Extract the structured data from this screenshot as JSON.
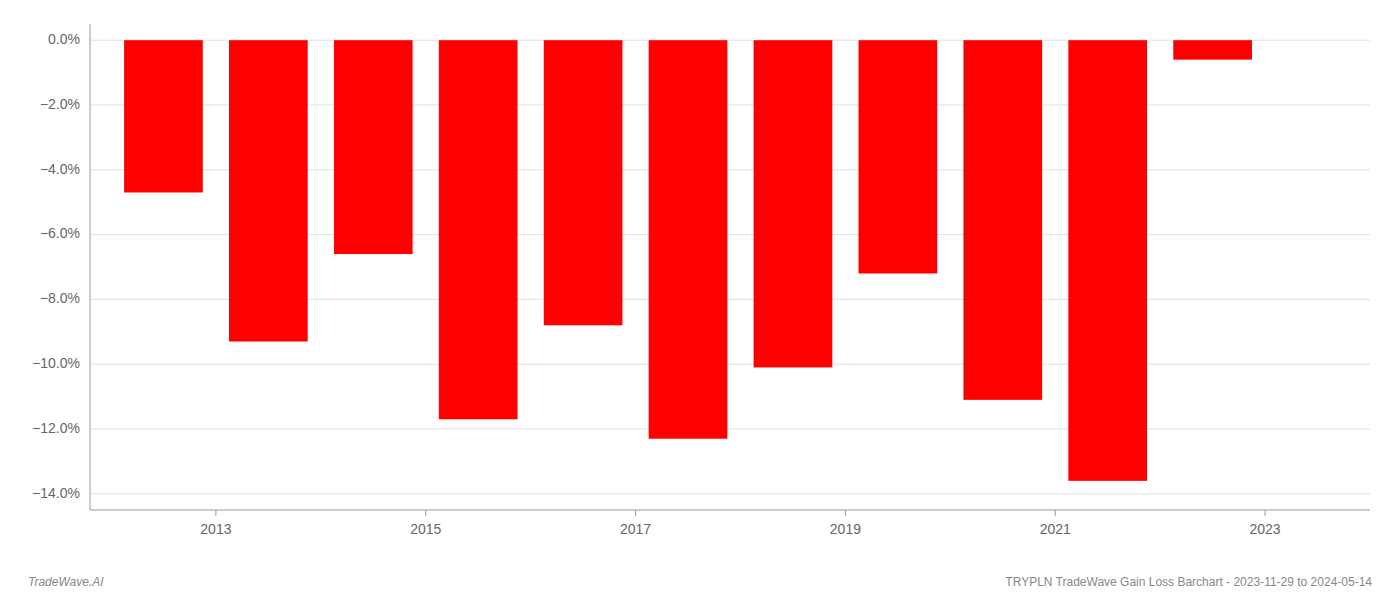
{
  "chart_data": {
    "type": "bar",
    "x": [
      2012.5,
      2013.5,
      2014.5,
      2015.5,
      2016.5,
      2017.5,
      2018.5,
      2019.5,
      2020.5,
      2021.5,
      2022.5
    ],
    "values": [
      -4.7,
      -9.3,
      -6.6,
      -11.7,
      -8.8,
      -12.3,
      -10.1,
      -7.2,
      -11.1,
      -13.6,
      -0.6
    ],
    "color": "#ff0000",
    "xlim": [
      2011.8,
      2024.0
    ],
    "xticks": [
      2013,
      2015,
      2017,
      2019,
      2021,
      2023
    ],
    "ylim": [
      -14.5,
      0.5
    ],
    "yticks": [
      {
        "value": 0.0,
        "label": "0.0%"
      },
      {
        "value": -2.0,
        "label": "−2.0%"
      },
      {
        "value": -4.0,
        "label": "−4.0%"
      },
      {
        "value": -6.0,
        "label": "−6.0%"
      },
      {
        "value": -8.0,
        "label": "−8.0%"
      },
      {
        "value": -10.0,
        "label": "−10.0%"
      },
      {
        "value": -12.0,
        "label": "−12.0%"
      },
      {
        "value": -14.0,
        "label": "−14.0%"
      }
    ],
    "grid": true,
    "annotations": [
      "TradeWave.AI",
      "TRYPLN TradeWave Gain Loss Barchart - 2023-11-29 to 2024-05-14"
    ]
  }
}
